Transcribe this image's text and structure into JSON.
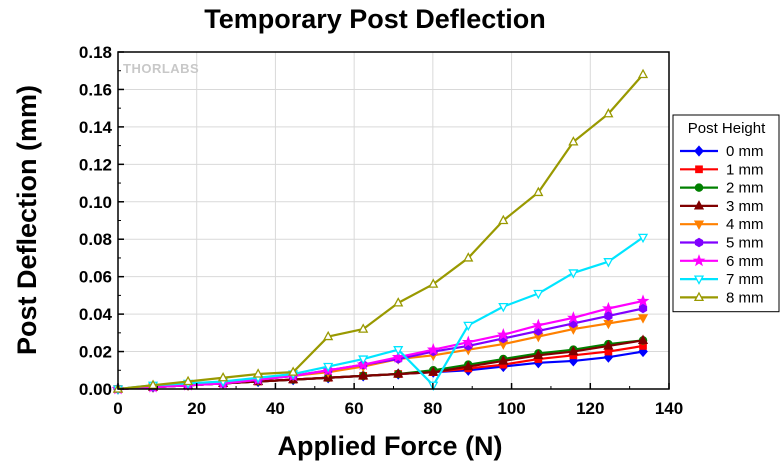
{
  "chart_data": {
    "type": "line",
    "title": "Temporary Post Deflection",
    "xlabel": "Applied Force (N)",
    "ylabel": "Post Deflection (mm)",
    "xlim": [
      0,
      140
    ],
    "ylim": [
      0,
      0.18
    ],
    "xticks": [
      "0",
      "20",
      "40",
      "60",
      "80",
      "100",
      "120",
      "140"
    ],
    "yticks": [
      "0.00",
      "0.02",
      "0.04",
      "0.06",
      "0.08",
      "0.10",
      "0.12",
      "0.14",
      "0.16",
      "0.18"
    ],
    "grid": true,
    "legend_title": "Post Height",
    "legend_position": "right",
    "watermark": "THORLABS",
    "x": [
      0,
      8.9,
      17.8,
      26.7,
      35.6,
      44.5,
      53.4,
      62.3,
      71.2,
      80.1,
      89.0,
      97.9,
      106.8,
      115.7,
      124.6,
      133.4
    ],
    "series": [
      {
        "name": "0 mm",
        "color": "#0000ff",
        "marker": "diamond",
        "filled": true,
        "values": [
          0,
          0.001,
          0.002,
          0.003,
          0.004,
          0.005,
          0.006,
          0.007,
          0.008,
          0.009,
          0.01,
          0.012,
          0.014,
          0.015,
          0.017,
          0.02
        ]
      },
      {
        "name": "1 mm",
        "color": "#ff0000",
        "marker": "square",
        "filled": true,
        "values": [
          0,
          0.001,
          0.002,
          0.003,
          0.004,
          0.005,
          0.006,
          0.007,
          0.008,
          0.009,
          0.011,
          0.013,
          0.016,
          0.018,
          0.02,
          0.023
        ]
      },
      {
        "name": "2 mm",
        "color": "#008000",
        "marker": "circle",
        "filled": true,
        "values": [
          0,
          0.001,
          0.002,
          0.003,
          0.004,
          0.005,
          0.006,
          0.007,
          0.008,
          0.01,
          0.013,
          0.016,
          0.019,
          0.021,
          0.024,
          0.026
        ]
      },
      {
        "name": "3 mm",
        "color": "#800000",
        "marker": "triangle-up",
        "filled": true,
        "values": [
          0,
          0.001,
          0.002,
          0.003,
          0.004,
          0.005,
          0.006,
          0.007,
          0.008,
          0.009,
          0.012,
          0.015,
          0.018,
          0.02,
          0.023,
          0.026
        ]
      },
      {
        "name": "4 mm",
        "color": "#ff8000",
        "marker": "triangle-down",
        "filled": true,
        "values": [
          0,
          0.001,
          0.002,
          0.003,
          0.005,
          0.007,
          0.009,
          0.012,
          0.016,
          0.018,
          0.021,
          0.024,
          0.028,
          0.032,
          0.035,
          0.038
        ]
      },
      {
        "name": "5 mm",
        "color": "#8000ff",
        "marker": "hexagon",
        "filled": true,
        "values": [
          0,
          0.001,
          0.002,
          0.003,
          0.005,
          0.007,
          0.01,
          0.013,
          0.016,
          0.02,
          0.023,
          0.027,
          0.031,
          0.035,
          0.039,
          0.043
        ]
      },
      {
        "name": "6 mm",
        "color": "#ff00ff",
        "marker": "star",
        "filled": true,
        "values": [
          0,
          0.001,
          0.002,
          0.003,
          0.005,
          0.007,
          0.01,
          0.013,
          0.017,
          0.021,
          0.025,
          0.029,
          0.034,
          0.038,
          0.043,
          0.047
        ]
      },
      {
        "name": "7 mm",
        "color": "#00e5ff",
        "marker": "triangle-down",
        "filled": false,
        "values": [
          0,
          0.002,
          0.003,
          0.004,
          0.006,
          0.008,
          0.012,
          0.016,
          0.021,
          0.002,
          0.034,
          0.044,
          0.051,
          0.062,
          0.068,
          0.081
        ]
      },
      {
        "name": "8 mm",
        "color": "#999900",
        "marker": "triangle-up",
        "filled": false,
        "values": [
          0,
          0.002,
          0.004,
          0.006,
          0.008,
          0.009,
          0.028,
          0.032,
          0.046,
          0.056,
          0.07,
          0.09,
          0.105,
          0.132,
          0.147,
          0.168
        ]
      }
    ]
  }
}
